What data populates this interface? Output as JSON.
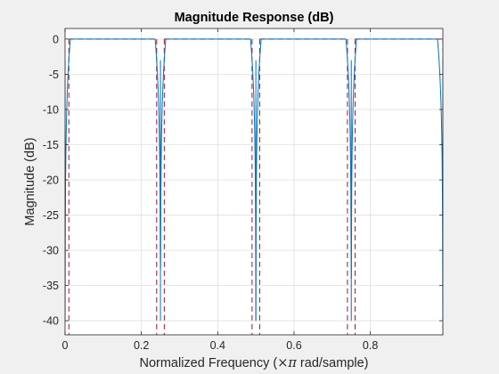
{
  "chart_data": {
    "type": "line",
    "title": "Magnitude Response (dB)",
    "xlabel_prefix": "Normalized Frequency  (",
    "xlabel_symbol": "×π",
    "xlabel_suffix": " rad/sample)",
    "ylabel": "Magnitude (dB)",
    "xlim": [
      0,
      0.99
    ],
    "ylim": [
      -42,
      1.5
    ],
    "xticks": [
      0,
      0.2,
      0.4,
      0.6,
      0.8
    ],
    "xtick_labels": [
      "0",
      "0.2",
      "0.4",
      "0.6",
      "0.8"
    ],
    "yticks": [
      0,
      -5,
      -10,
      -15,
      -20,
      -25,
      -30,
      -35,
      -40
    ],
    "ytick_labels": [
      "0",
      "-5",
      "-10",
      "-15",
      "-20",
      "-25",
      "-30",
      "-35",
      "-40"
    ],
    "grid": true,
    "series": [
      {
        "role": "response",
        "color": "#0072BD",
        "notches": [
          0,
          0.25,
          0.5,
          0.75,
          0.99
        ],
        "notch_floor_db": -40
      },
      {
        "role": "mask",
        "color": "#A2142F",
        "level_db": 0,
        "floor_db": -42,
        "edges": [
          0.01,
          0.24,
          0.26,
          0.49,
          0.51,
          0.74,
          0.76,
          0.99
        ]
      }
    ]
  }
}
